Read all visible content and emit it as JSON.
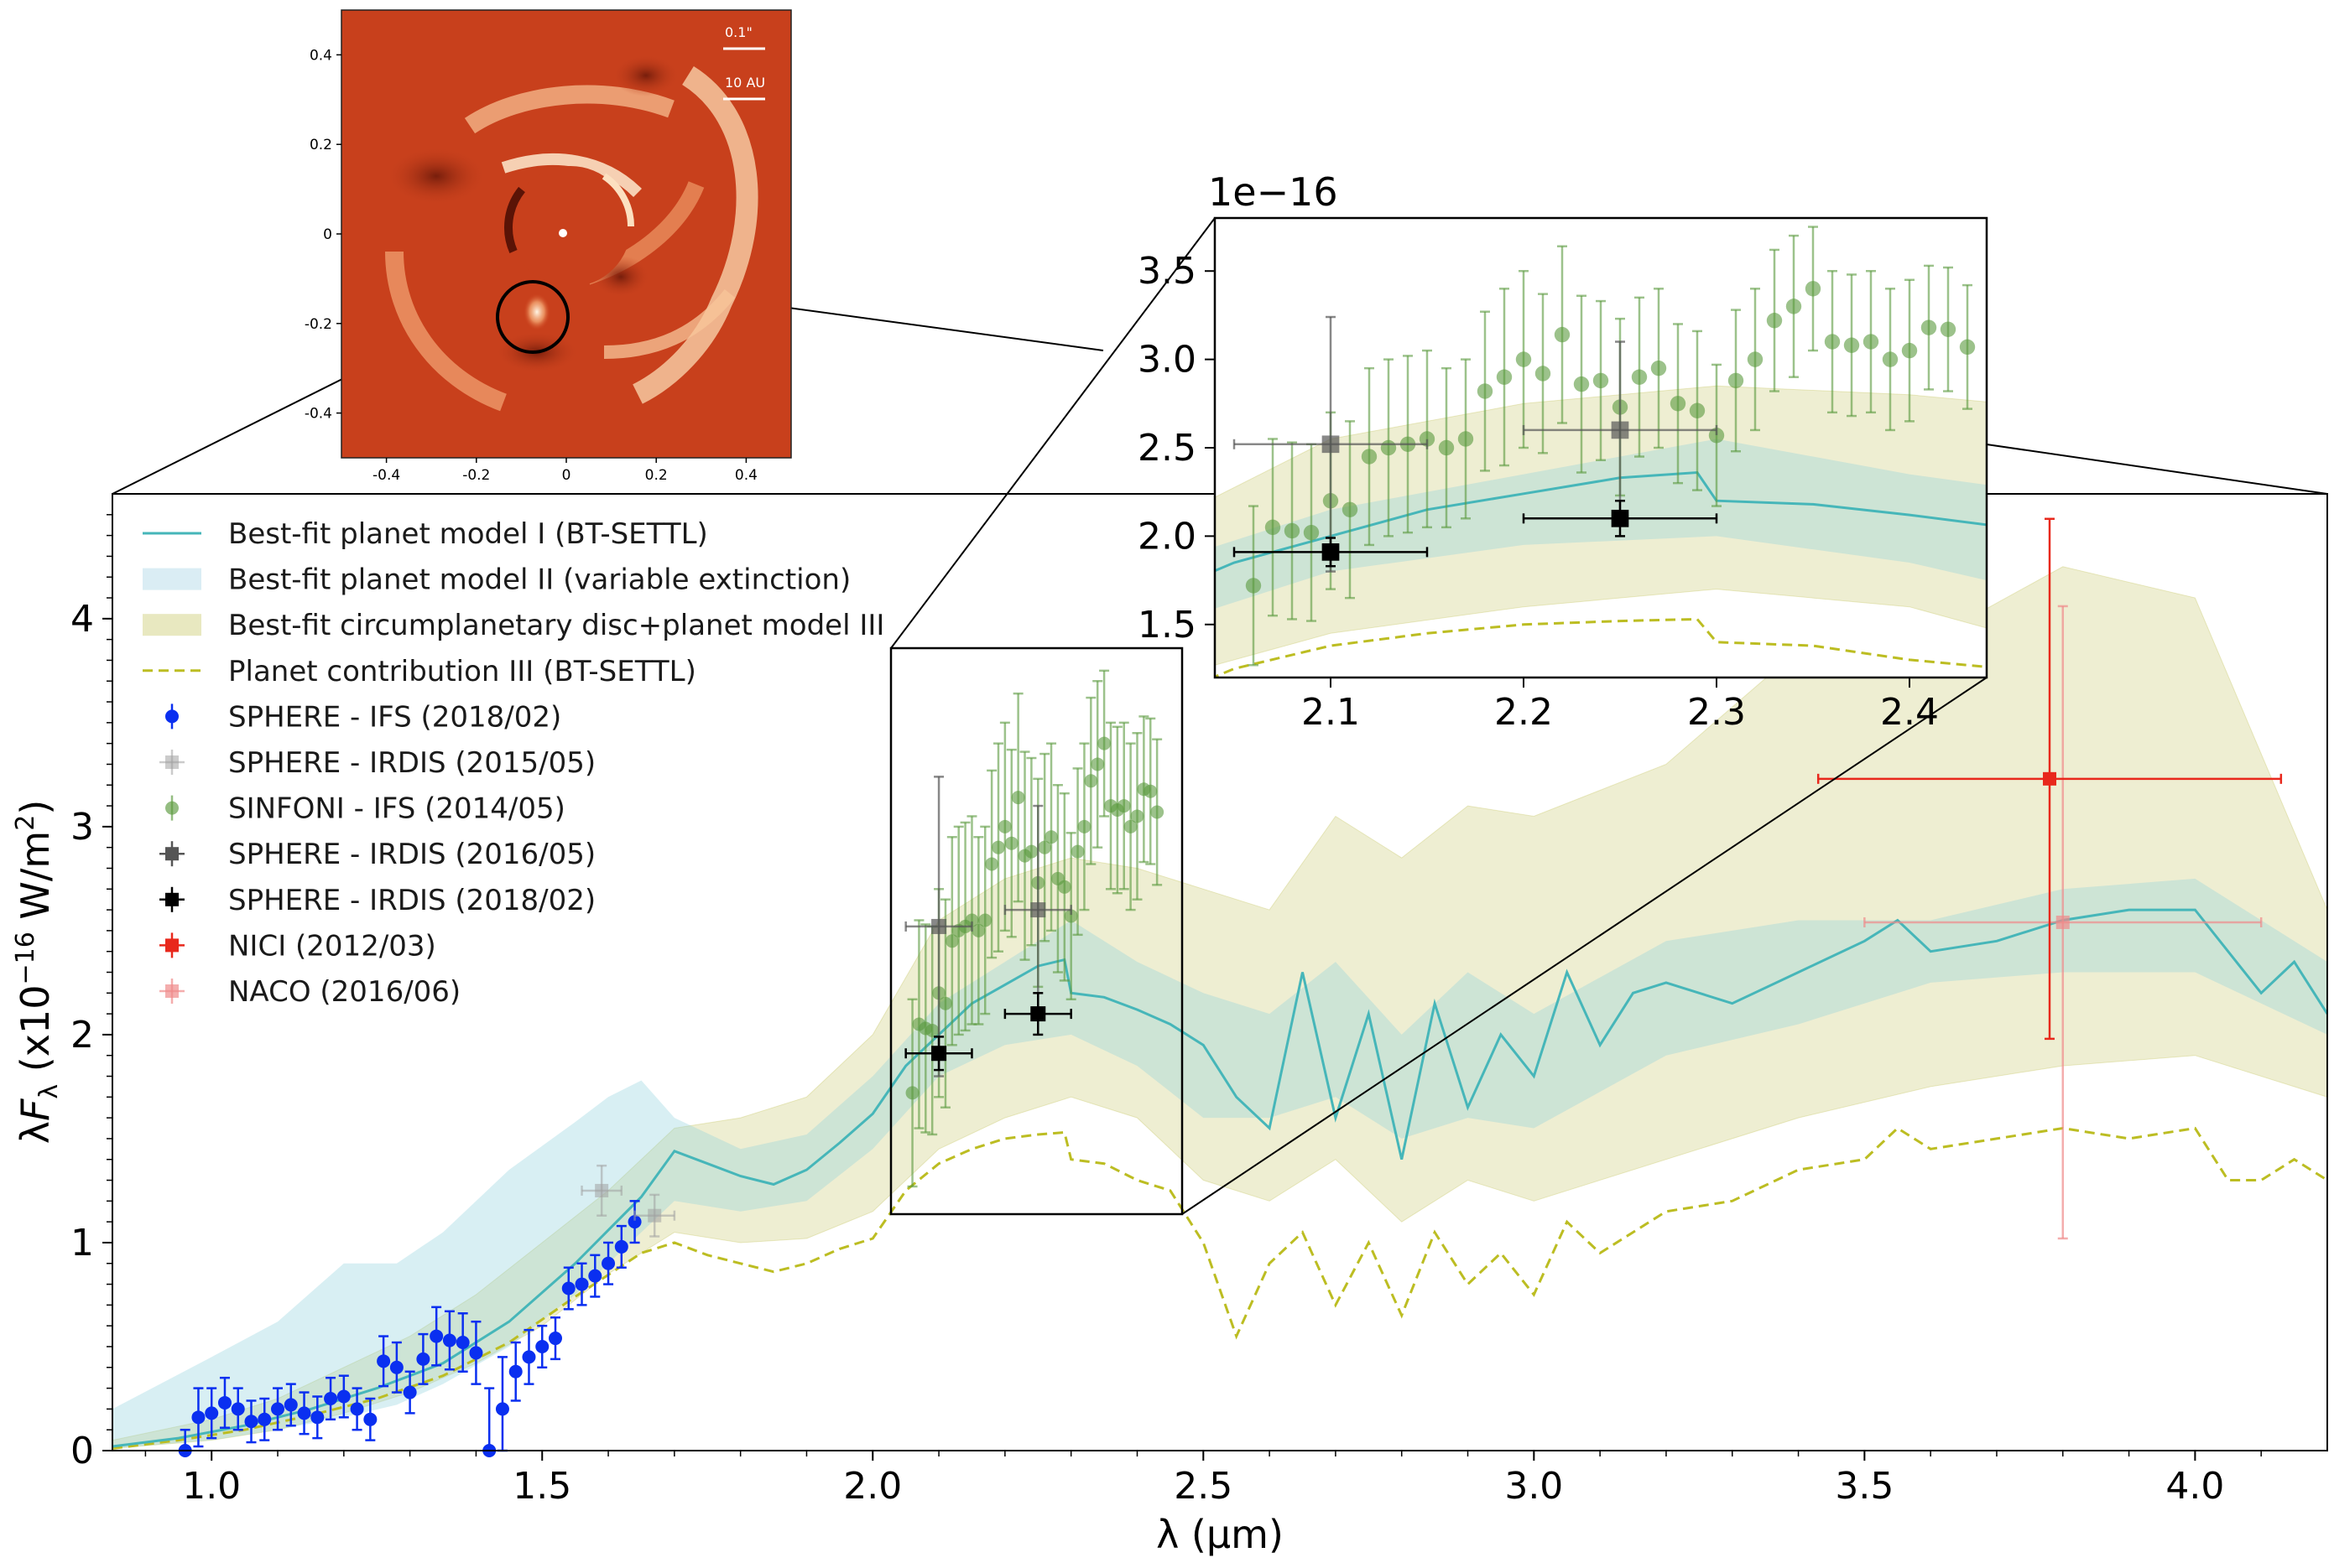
{
  "chart_data": [
    {
      "name": "main",
      "type": "line",
      "xlabel": "λ (μm)",
      "ylabel": "λF_λ (x10^-16 W/m^2)",
      "xlim": [
        0.85,
        4.2
      ],
      "ylim": [
        0,
        4.6
      ],
      "xticks": [
        "1.0",
        "1.5",
        "2.0",
        "2.5",
        "3.0",
        "3.5",
        "4.0"
      ],
      "yticks": [
        "0",
        "1",
        "2",
        "3",
        "4"
      ],
      "legend_position": "top-left",
      "legend": [
        {
          "label": "Best-fit planet model I (BT-SETTL)",
          "kind": "line",
          "color": "#46b6b9"
        },
        {
          "label": "Best-fit planet model II (variable extinction)",
          "kind": "band",
          "color": "#add8e6"
        },
        {
          "label": "Best-fit circumplanetary disc+planet model III",
          "kind": "band",
          "color": "#bdbd4a"
        },
        {
          "label": "Planet contribution III (BT-SETTL)",
          "kind": "dashed",
          "color": "#bcbd22"
        },
        {
          "label": "SPHERE - IFS (2018/02)",
          "kind": "marker-circle",
          "color": "#0a2ff0"
        },
        {
          "label": "SPHERE - IRDIS (2015/05)",
          "kind": "marker-square",
          "color": "#a0a0a0"
        },
        {
          "label": "SINFONI - IFS (2014/05)",
          "kind": "marker-circle",
          "color": "#5a9a3e"
        },
        {
          "label": "SPHERE - IRDIS (2016/05)",
          "kind": "marker-square",
          "color": "#555555"
        },
        {
          "label": "SPHERE - IRDIS (2018/02)",
          "kind": "marker-square",
          "color": "#000000"
        },
        {
          "label": "NICI (2012/03)",
          "kind": "marker-square",
          "color": "#e8281c"
        },
        {
          "label": "NACO (2016/06)",
          "kind": "marker-square",
          "color": "#f08a8a"
        }
      ],
      "series": [
        {
          "name": "Best-fit planet model I (BT-SETTL)",
          "x": [
            0.85,
            0.95,
            1.05,
            1.15,
            1.25,
            1.35,
            1.45,
            1.55,
            1.65,
            1.7,
            1.75,
            1.8,
            1.85,
            1.9,
            1.95,
            2.0,
            2.05,
            2.1,
            2.15,
            2.2,
            2.25,
            2.29,
            2.3,
            2.35,
            2.4,
            2.45,
            2.5,
            2.55,
            2.6,
            2.65,
            2.7,
            2.75,
            2.8,
            2.85,
            2.9,
            2.95,
            3.0,
            3.05,
            3.1,
            3.15,
            3.2,
            3.3,
            3.4,
            3.5,
            3.55,
            3.6,
            3.7,
            3.8,
            3.9,
            4.0,
            4.05,
            4.1,
            4.15,
            4.2
          ],
          "y": [
            0.02,
            0.06,
            0.12,
            0.2,
            0.3,
            0.42,
            0.62,
            0.9,
            1.22,
            1.44,
            1.38,
            1.32,
            1.28,
            1.35,
            1.48,
            1.62,
            1.85,
            2.0,
            2.15,
            2.24,
            2.33,
            2.36,
            2.2,
            2.18,
            2.12,
            2.05,
            1.95,
            1.7,
            1.55,
            2.3,
            1.6,
            2.1,
            1.4,
            2.15,
            1.65,
            2.0,
            1.8,
            2.3,
            1.95,
            2.2,
            2.25,
            2.15,
            2.3,
            2.45,
            2.55,
            2.4,
            2.45,
            2.55,
            2.6,
            2.6,
            2.4,
            2.2,
            2.35,
            2.1
          ]
        },
        {
          "name": "Planet contribution III (BT-SETTL)",
          "x": [
            0.85,
            0.95,
            1.05,
            1.15,
            1.25,
            1.35,
            1.45,
            1.55,
            1.65,
            1.7,
            1.75,
            1.8,
            1.85,
            1.9,
            1.95,
            2.0,
            2.05,
            2.1,
            2.15,
            2.2,
            2.25,
            2.29,
            2.3,
            2.35,
            2.4,
            2.45,
            2.5,
            2.55,
            2.6,
            2.65,
            2.7,
            2.75,
            2.8,
            2.85,
            2.9,
            2.95,
            3.0,
            3.05,
            3.1,
            3.15,
            3.2,
            3.3,
            3.4,
            3.5,
            3.55,
            3.6,
            3.7,
            3.8,
            3.9,
            4.0,
            4.05,
            4.1,
            4.15,
            4.2
          ],
          "y": [
            0.01,
            0.05,
            0.1,
            0.17,
            0.25,
            0.36,
            0.52,
            0.74,
            0.95,
            1.0,
            0.94,
            0.9,
            0.86,
            0.9,
            0.97,
            1.02,
            1.25,
            1.38,
            1.45,
            1.5,
            1.52,
            1.53,
            1.4,
            1.38,
            1.3,
            1.25,
            1.0,
            0.55,
            0.9,
            1.05,
            0.7,
            1.0,
            0.65,
            1.05,
            0.8,
            0.95,
            0.75,
            1.1,
            0.95,
            1.05,
            1.15,
            1.2,
            1.35,
            1.4,
            1.55,
            1.45,
            1.5,
            1.55,
            1.5,
            1.55,
            1.3,
            1.3,
            1.4,
            1.3
          ]
        },
        {
          "name": "Best-fit planet model II (variable extinction)",
          "kind": "band",
          "x": [
            0.85,
            1.0,
            1.1,
            1.2,
            1.28,
            1.35,
            1.45,
            1.55,
            1.6,
            1.65,
            1.7,
            1.8,
            1.9,
            2.0,
            2.1,
            2.2,
            2.3,
            2.4,
            2.5,
            2.6,
            2.7,
            2.8,
            2.9,
            3.0,
            3.2,
            3.4,
            3.6,
            3.8,
            4.0,
            4.2
          ],
          "ylow": [
            0.01,
            0.05,
            0.1,
            0.16,
            0.22,
            0.32,
            0.5,
            0.75,
            0.9,
            1.05,
            1.2,
            1.15,
            1.2,
            1.45,
            1.8,
            1.95,
            2.0,
            1.85,
            1.6,
            1.6,
            1.7,
            1.5,
            1.6,
            1.55,
            1.9,
            2.05,
            2.25,
            2.3,
            2.3,
            2.0
          ],
          "yhigh": [
            0.2,
            0.45,
            0.62,
            0.9,
            0.9,
            1.05,
            1.35,
            1.58,
            1.7,
            1.78,
            1.6,
            1.45,
            1.52,
            1.8,
            2.15,
            2.35,
            2.55,
            2.35,
            2.2,
            2.1,
            2.35,
            2.0,
            2.3,
            2.1,
            2.45,
            2.55,
            2.55,
            2.7,
            2.75,
            2.35
          ]
        },
        {
          "name": "Best-fit circumplanetary disc+planet model III",
          "kind": "band",
          "x": [
            0.85,
            1.0,
            1.1,
            1.2,
            1.3,
            1.4,
            1.5,
            1.6,
            1.7,
            1.8,
            1.9,
            2.0,
            2.1,
            2.2,
            2.3,
            2.4,
            2.5,
            2.6,
            2.7,
            2.8,
            2.9,
            3.0,
            3.2,
            3.4,
            3.6,
            3.8,
            4.0,
            4.2
          ],
          "ylow": [
            0.01,
            0.05,
            0.1,
            0.18,
            0.28,
            0.42,
            0.6,
            0.85,
            1.05,
            1.0,
            1.02,
            1.15,
            1.45,
            1.6,
            1.7,
            1.6,
            1.3,
            1.2,
            1.4,
            1.1,
            1.3,
            1.2,
            1.4,
            1.6,
            1.75,
            1.85,
            1.9,
            1.7
          ],
          "yhigh": [
            0.05,
            0.15,
            0.25,
            0.4,
            0.55,
            0.75,
            1.0,
            1.25,
            1.55,
            1.6,
            1.7,
            2.0,
            2.55,
            2.75,
            2.85,
            2.8,
            2.7,
            2.6,
            3.05,
            2.85,
            3.1,
            3.05,
            3.3,
            3.85,
            3.9,
            4.25,
            4.1,
            2.6
          ]
        },
        {
          "name": "SPHERE - IFS (2018/02)",
          "x": [
            0.96,
            0.98,
            1.0,
            1.02,
            1.04,
            1.06,
            1.08,
            1.1,
            1.12,
            1.14,
            1.16,
            1.18,
            1.2,
            1.22,
            1.24,
            1.26,
            1.28,
            1.3,
            1.32,
            1.34,
            1.36,
            1.38,
            1.4,
            1.42,
            1.44,
            1.46,
            1.48,
            1.5,
            1.52,
            1.54,
            1.56,
            1.58,
            1.6,
            1.62,
            1.64
          ],
          "y": [
            0.0,
            0.16,
            0.18,
            0.23,
            0.2,
            0.14,
            0.15,
            0.2,
            0.22,
            0.18,
            0.16,
            0.25,
            0.26,
            0.2,
            0.15,
            0.43,
            0.4,
            0.28,
            0.44,
            0.55,
            0.53,
            0.52,
            0.47,
            0.0,
            0.2,
            0.38,
            0.45,
            0.5,
            0.54,
            0.78,
            0.8,
            0.84,
            0.9,
            0.98,
            1.1
          ],
          "yerr": [
            0.1,
            0.14,
            0.12,
            0.12,
            0.1,
            0.1,
            0.1,
            0.1,
            0.1,
            0.1,
            0.1,
            0.1,
            0.1,
            0.1,
            0.1,
            0.12,
            0.12,
            0.1,
            0.12,
            0.14,
            0.14,
            0.14,
            0.15,
            0.3,
            0.25,
            0.14,
            0.13,
            0.1,
            0.1,
            0.1,
            0.1,
            0.1,
            0.1,
            0.1,
            0.1
          ]
        },
        {
          "name": "SPHERE - IRDIS (2015/05)",
          "x": [
            1.59,
            1.67
          ],
          "y": [
            1.25,
            1.13
          ],
          "yerr": [
            0.12,
            0.1
          ],
          "xerr": [
            0.03,
            0.03
          ]
        },
        {
          "name": "SINFONI - IFS (2014/05)",
          "x": [
            2.06,
            2.07,
            2.08,
            2.09,
            2.1,
            2.11,
            2.12,
            2.13,
            2.14,
            2.15,
            2.16,
            2.17,
            2.18,
            2.19,
            2.2,
            2.21,
            2.22,
            2.23,
            2.24,
            2.25,
            2.26,
            2.27,
            2.28,
            2.29,
            2.3,
            2.31,
            2.32,
            2.33,
            2.34,
            2.35,
            2.36,
            2.37,
            2.38,
            2.39,
            2.4,
            2.41,
            2.42,
            2.43
          ],
          "y": [
            1.72,
            2.05,
            2.03,
            2.02,
            2.2,
            2.15,
            2.45,
            2.5,
            2.52,
            2.55,
            2.5,
            2.55,
            2.82,
            2.9,
            3.0,
            2.92,
            3.14,
            2.86,
            2.88,
            2.73,
            2.9,
            2.95,
            2.75,
            2.71,
            2.57,
            2.88,
            3.0,
            3.22,
            3.3,
            3.4,
            3.1,
            3.08,
            3.1,
            3.0,
            3.05,
            3.18,
            3.17,
            3.07
          ],
          "yerr": [
            0.45,
            0.5,
            0.5,
            0.5,
            0.5,
            0.5,
            0.5,
            0.5,
            0.5,
            0.5,
            0.45,
            0.45,
            0.45,
            0.5,
            0.5,
            0.45,
            0.5,
            0.5,
            0.45,
            0.5,
            0.45,
            0.45,
            0.45,
            0.45,
            0.4,
            0.4,
            0.4,
            0.4,
            0.4,
            0.35,
            0.4,
            0.4,
            0.4,
            0.4,
            0.4,
            0.35,
            0.35,
            0.35
          ]
        },
        {
          "name": "SPHERE - IRDIS (2016/05)",
          "x": [
            2.1,
            2.25
          ],
          "y": [
            2.52,
            2.6
          ],
          "yerr": [
            0.72,
            0.5
          ],
          "xerr": [
            0.05,
            0.05
          ]
        },
        {
          "name": "SPHERE - IRDIS (2018/02)",
          "x": [
            2.1,
            2.25
          ],
          "y": [
            1.91,
            2.1
          ],
          "yerr": [
            0.08,
            0.1
          ],
          "xerr": [
            0.05,
            0.05
          ]
        },
        {
          "name": "NICI (2012/03)",
          "x": [
            3.78
          ],
          "y": [
            3.23
          ],
          "yerr": [
            1.25
          ],
          "xerr": [
            0.35
          ]
        },
        {
          "name": "NACO (2016/06)",
          "x": [
            3.8
          ],
          "y": [
            2.54
          ],
          "yerr": [
            1.52
          ],
          "xerr": [
            0.3
          ]
        }
      ]
    },
    {
      "name": "zoom-inset",
      "type": "line",
      "offset_text": "1e−16",
      "xlim": [
        2.04,
        2.44
      ],
      "ylim": [
        1.2,
        3.8
      ],
      "xticks": [
        "2.1",
        "2.2",
        "2.3",
        "2.4"
      ],
      "yticks": [
        "1.5",
        "2.0",
        "2.5",
        "3.0",
        "3.5"
      ]
    },
    {
      "name": "image-inset",
      "type": "heatmap",
      "xticks": [
        "-0.4",
        "-0.2",
        "0",
        "0.2",
        "0.4"
      ],
      "yticks": [
        "0.4",
        "0.2",
        "0",
        "-0.2",
        "-0.4"
      ],
      "scalebars": [
        "0.1\"",
        "10 AU"
      ]
    }
  ]
}
